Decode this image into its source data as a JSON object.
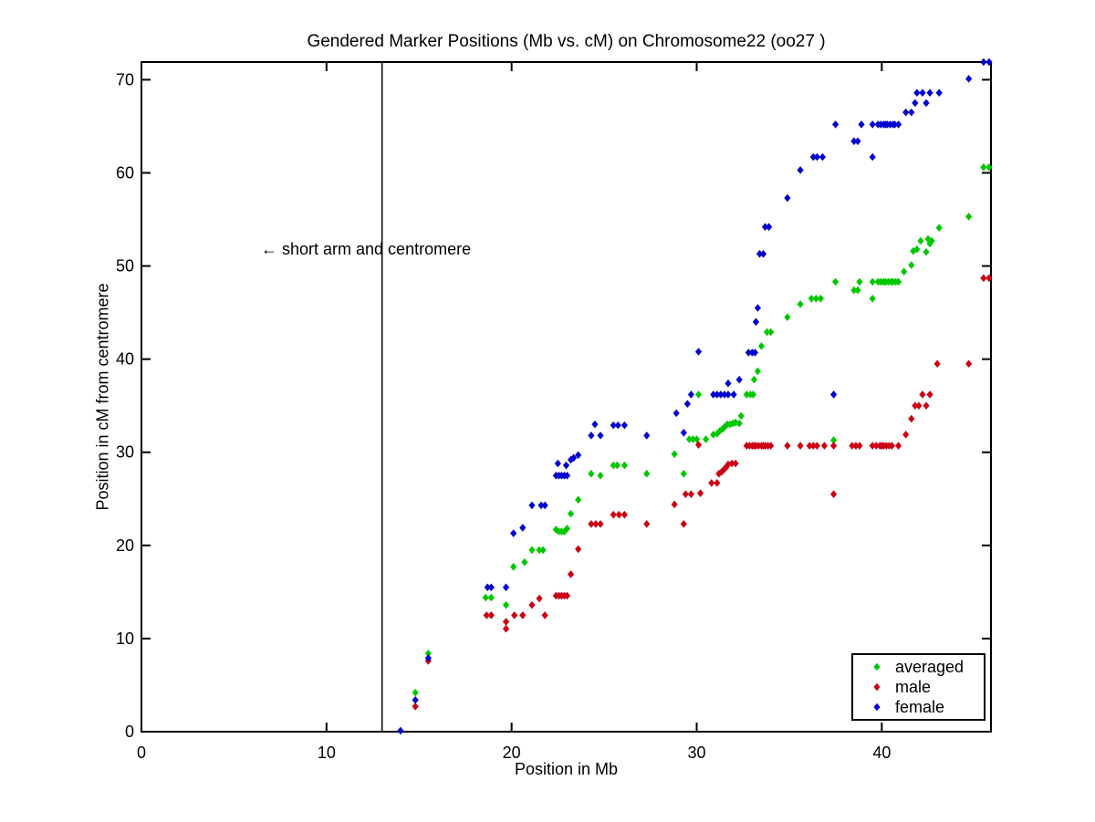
{
  "chart_data": {
    "type": "scatter",
    "title": "Gendered Marker Positions (Mb vs. cM) on Chromosome22 (oo27 )",
    "xlabel": "Position in Mb",
    "ylabel": "Position in cM from centromere",
    "xlim": [
      0,
      45.9
    ],
    "ylim": [
      0,
      71.9
    ],
    "xticks": [
      0,
      10,
      20,
      30,
      40
    ],
    "yticks": [
      0,
      10,
      20,
      30,
      40,
      50,
      60,
      70
    ],
    "grid": false,
    "background": "#ffffff",
    "axis_color": "#000000",
    "vline_x_mb": 13,
    "annotation": {
      "text": "← short arm and centromere",
      "x_mb": 6.5,
      "y_cm": 51.8
    },
    "legend": {
      "position": "lower right",
      "entries": [
        "averaged",
        "male",
        "female"
      ]
    },
    "series": [
      {
        "name": "averaged",
        "color": "#00c800",
        "marker": "diamond",
        "points": [
          [
            14.8,
            4.2
          ],
          [
            15.5,
            8.4
          ],
          [
            18.6,
            14.4
          ],
          [
            18.9,
            14.4
          ],
          [
            19.7,
            13.6
          ],
          [
            20.1,
            17.7
          ],
          [
            20.7,
            18.2
          ],
          [
            21.1,
            19.5
          ],
          [
            21.5,
            19.5
          ],
          [
            21.7,
            19.5
          ],
          [
            22.4,
            21.7
          ],
          [
            22.55,
            21.5
          ],
          [
            22.7,
            21.5
          ],
          [
            22.85,
            21.5
          ],
          [
            23.0,
            21.8
          ],
          [
            23.2,
            23.4
          ],
          [
            23.6,
            24.9
          ],
          [
            24.3,
            27.7
          ],
          [
            24.8,
            27.5
          ],
          [
            27.3,
            27.7
          ],
          [
            29.3,
            27.7
          ],
          [
            25.5,
            28.6
          ],
          [
            25.7,
            28.6
          ],
          [
            26.1,
            28.6
          ],
          [
            28.8,
            29.8
          ],
          [
            29.6,
            31.4
          ],
          [
            29.8,
            31.4
          ],
          [
            30.0,
            31.4
          ],
          [
            30.5,
            31.4
          ],
          [
            30.9,
            31.9
          ],
          [
            31.1,
            32.0
          ],
          [
            31.25,
            32.3
          ],
          [
            31.4,
            32.5
          ],
          [
            31.5,
            32.7
          ],
          [
            31.65,
            33.0
          ],
          [
            31.8,
            33.0
          ],
          [
            31.95,
            33.1
          ],
          [
            32.1,
            33.2
          ],
          [
            32.3,
            33.1
          ],
          [
            32.4,
            33.9
          ],
          [
            30.1,
            36.2
          ],
          [
            32.7,
            36.2
          ],
          [
            32.9,
            36.2
          ],
          [
            33.05,
            36.2
          ],
          [
            33.1,
            37.8
          ],
          [
            33.3,
            38.7
          ],
          [
            33.5,
            41.4
          ],
          [
            33.8,
            42.9
          ],
          [
            34.0,
            42.9
          ],
          [
            34.9,
            44.5
          ],
          [
            35.6,
            45.9
          ],
          [
            36.2,
            46.5
          ],
          [
            36.45,
            46.5
          ],
          [
            36.7,
            46.5
          ],
          [
            39.5,
            46.5
          ],
          [
            38.5,
            47.4
          ],
          [
            38.7,
            47.4
          ],
          [
            37.4,
            31.3
          ],
          [
            37.5,
            48.3
          ],
          [
            38.8,
            48.3
          ],
          [
            39.5,
            48.3
          ],
          [
            39.8,
            48.3
          ],
          [
            39.95,
            48.3
          ],
          [
            40.1,
            48.3
          ],
          [
            40.2,
            48.3
          ],
          [
            40.35,
            48.3
          ],
          [
            40.5,
            48.3
          ],
          [
            40.6,
            48.3
          ],
          [
            40.75,
            48.3
          ],
          [
            40.9,
            48.3
          ],
          [
            41.2,
            49.4
          ],
          [
            41.6,
            50.1
          ],
          [
            41.7,
            51.6
          ],
          [
            41.9,
            51.8
          ],
          [
            42.4,
            51.5
          ],
          [
            42.1,
            52.7
          ],
          [
            42.5,
            52.9
          ],
          [
            42.6,
            52.4
          ],
          [
            42.7,
            52.7
          ],
          [
            43.1,
            54.1
          ],
          [
            44.7,
            55.3
          ],
          [
            45.5,
            60.6
          ],
          [
            45.8,
            60.6
          ]
        ]
      },
      {
        "name": "male",
        "color": "#cc0014",
        "marker": "diamond",
        "points": [
          [
            14.8,
            2.7
          ],
          [
            15.5,
            7.6
          ],
          [
            18.65,
            12.5
          ],
          [
            18.9,
            12.5
          ],
          [
            20.15,
            12.5
          ],
          [
            20.6,
            12.5
          ],
          [
            21.8,
            12.5
          ],
          [
            19.7,
            11.8
          ],
          [
            19.7,
            11.05
          ],
          [
            21.1,
            13.6
          ],
          [
            21.5,
            14.3
          ],
          [
            22.4,
            14.6
          ],
          [
            22.55,
            14.6
          ],
          [
            22.7,
            14.6
          ],
          [
            22.85,
            14.6
          ],
          [
            23.0,
            14.6
          ],
          [
            23.2,
            16.9
          ],
          [
            23.6,
            19.6
          ],
          [
            24.3,
            22.3
          ],
          [
            24.55,
            22.3
          ],
          [
            24.8,
            22.3
          ],
          [
            25.5,
            23.3
          ],
          [
            25.8,
            23.3
          ],
          [
            26.1,
            23.3
          ],
          [
            27.3,
            22.3
          ],
          [
            29.3,
            22.3
          ],
          [
            28.8,
            24.4
          ],
          [
            29.4,
            25.5
          ],
          [
            29.7,
            25.5
          ],
          [
            30.2,
            25.6
          ],
          [
            30.8,
            26.7
          ],
          [
            31.1,
            26.7
          ],
          [
            31.2,
            27.7
          ],
          [
            31.35,
            27.9
          ],
          [
            31.5,
            28.2
          ],
          [
            31.6,
            28.4
          ],
          [
            31.7,
            28.7
          ],
          [
            31.9,
            28.8
          ],
          [
            32.1,
            28.8
          ],
          [
            30.1,
            30.8
          ],
          [
            32.7,
            30.7
          ],
          [
            32.85,
            30.7
          ],
          [
            33.0,
            30.7
          ],
          [
            33.1,
            30.7
          ],
          [
            33.2,
            30.7
          ],
          [
            33.35,
            30.7
          ],
          [
            33.5,
            30.7
          ],
          [
            33.6,
            30.7
          ],
          [
            33.7,
            30.7
          ],
          [
            33.85,
            30.7
          ],
          [
            34.0,
            30.7
          ],
          [
            34.9,
            30.7
          ],
          [
            35.6,
            30.7
          ],
          [
            36.1,
            30.7
          ],
          [
            36.3,
            30.7
          ],
          [
            36.5,
            30.7
          ],
          [
            36.9,
            30.7
          ],
          [
            37.4,
            30.7
          ],
          [
            38.4,
            30.7
          ],
          [
            38.6,
            30.7
          ],
          [
            38.8,
            30.7
          ],
          [
            39.5,
            30.7
          ],
          [
            39.7,
            30.7
          ],
          [
            39.9,
            30.7
          ],
          [
            40.0,
            30.7
          ],
          [
            40.1,
            30.7
          ],
          [
            40.25,
            30.7
          ],
          [
            40.4,
            30.7
          ],
          [
            40.55,
            30.7
          ],
          [
            40.9,
            30.7
          ],
          [
            37.4,
            25.5
          ],
          [
            41.3,
            31.9
          ],
          [
            41.6,
            33.6
          ],
          [
            41.8,
            35.0
          ],
          [
            42.0,
            35.0
          ],
          [
            42.4,
            35.0
          ],
          [
            42.2,
            36.2
          ],
          [
            42.6,
            36.2
          ],
          [
            43.0,
            39.5
          ],
          [
            44.7,
            39.5
          ],
          [
            45.5,
            48.7
          ],
          [
            45.8,
            48.7
          ]
        ]
      },
      {
        "name": "female",
        "color": "#0000cc",
        "marker": "diamond",
        "points": [
          [
            14.0,
            0.1
          ],
          [
            14.8,
            3.4
          ],
          [
            15.5,
            7.9
          ],
          [
            18.7,
            15.5
          ],
          [
            18.9,
            15.5
          ],
          [
            19.7,
            15.5
          ],
          [
            20.1,
            21.3
          ],
          [
            20.6,
            21.9
          ],
          [
            21.1,
            24.3
          ],
          [
            21.6,
            24.3
          ],
          [
            21.8,
            24.3
          ],
          [
            22.4,
            27.5
          ],
          [
            22.55,
            27.5
          ],
          [
            22.7,
            27.5
          ],
          [
            22.85,
            27.5
          ],
          [
            23.0,
            27.5
          ],
          [
            22.5,
            28.8
          ],
          [
            22.95,
            28.6
          ],
          [
            23.2,
            29.2
          ],
          [
            23.35,
            29.4
          ],
          [
            23.6,
            29.7
          ],
          [
            24.3,
            31.8
          ],
          [
            24.8,
            31.8
          ],
          [
            27.3,
            31.8
          ],
          [
            24.5,
            33.0
          ],
          [
            25.5,
            32.9
          ],
          [
            25.75,
            32.9
          ],
          [
            26.1,
            32.9
          ],
          [
            28.9,
            34.2
          ],
          [
            29.3,
            32.1
          ],
          [
            29.5,
            35.2
          ],
          [
            29.7,
            36.2
          ],
          [
            30.9,
            36.2
          ],
          [
            31.1,
            36.2
          ],
          [
            31.3,
            36.2
          ],
          [
            31.5,
            36.2
          ],
          [
            31.7,
            36.2
          ],
          [
            32.0,
            36.2
          ],
          [
            37.4,
            36.2
          ],
          [
            31.7,
            37.4
          ],
          [
            32.3,
            37.8
          ],
          [
            30.1,
            40.8
          ],
          [
            32.8,
            40.7
          ],
          [
            33.0,
            40.7
          ],
          [
            33.15,
            40.7
          ],
          [
            33.2,
            44.0
          ],
          [
            33.3,
            45.5
          ],
          [
            33.4,
            51.3
          ],
          [
            33.6,
            51.3
          ],
          [
            33.7,
            54.2
          ],
          [
            33.9,
            54.2
          ],
          [
            34.9,
            57.3
          ],
          [
            35.6,
            60.3
          ],
          [
            36.3,
            61.7
          ],
          [
            36.5,
            61.7
          ],
          [
            36.8,
            61.7
          ],
          [
            39.5,
            61.7
          ],
          [
            38.5,
            63.4
          ],
          [
            38.7,
            63.4
          ],
          [
            37.5,
            65.2
          ],
          [
            38.9,
            65.2
          ],
          [
            39.5,
            65.2
          ],
          [
            39.8,
            65.2
          ],
          [
            39.95,
            65.2
          ],
          [
            40.1,
            65.2
          ],
          [
            40.2,
            65.2
          ],
          [
            40.3,
            65.2
          ],
          [
            40.45,
            65.2
          ],
          [
            40.6,
            65.2
          ],
          [
            40.7,
            65.2
          ],
          [
            40.9,
            65.2
          ],
          [
            41.3,
            66.5
          ],
          [
            41.6,
            66.5
          ],
          [
            41.8,
            67.5
          ],
          [
            42.4,
            67.5
          ],
          [
            41.9,
            68.6
          ],
          [
            42.2,
            68.6
          ],
          [
            42.6,
            68.6
          ],
          [
            43.1,
            68.6
          ],
          [
            44.7,
            70.1
          ],
          [
            45.5,
            71.9
          ],
          [
            45.8,
            71.9
          ]
        ]
      }
    ]
  }
}
